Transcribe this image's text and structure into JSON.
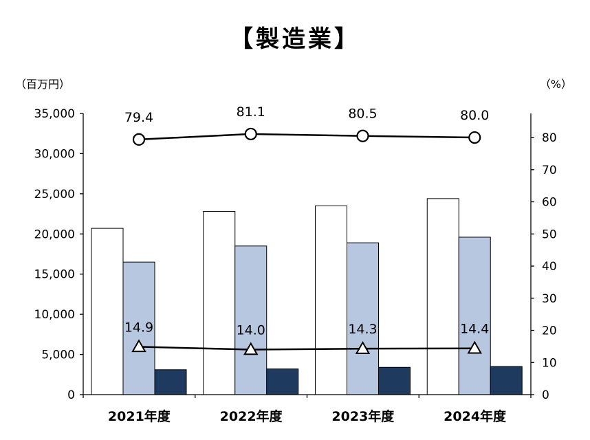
{
  "title": "【製造業】",
  "left_unit": "（百万円）",
  "right_unit": "（%）",
  "chart_data": {
    "type": "bar",
    "categories": [
      "2021年度",
      "2022年度",
      "2023年度",
      "2024年度"
    ],
    "series": [
      {
        "values": [
          20700,
          22800,
          23500,
          24400
        ],
        "color": "#ffffff",
        "stroke": "#000000"
      },
      {
        "values": [
          16500,
          18500,
          18900,
          19600
        ],
        "color": "#b8c7e0",
        "stroke": "#000000"
      },
      {
        "values": [
          3100,
          3200,
          3400,
          3500
        ],
        "color": "#1f3a5f",
        "stroke": "#000000"
      }
    ],
    "line_series": [
      {
        "marker": "circle",
        "axis": "right",
        "values": [
          79.4,
          81.1,
          80.5,
          80.0
        ],
        "labels": [
          "79.4",
          "81.1",
          "80.5",
          "80.0"
        ]
      },
      {
        "marker": "triangle",
        "axis": "right",
        "values": [
          14.9,
          14.0,
          14.3,
          14.4
        ],
        "labels": [
          "14.9",
          "14.0",
          "14.3",
          "14.4"
        ]
      }
    ],
    "y_left": {
      "lim": [
        0,
        35000
      ],
      "ticks": [
        "0",
        "5,000",
        "10,000",
        "15,000",
        "20,000",
        "25,000",
        "30,000",
        "35,000"
      ]
    },
    "y_right": {
      "lim": [
        0,
        87.5
      ],
      "ticks": [
        "0",
        "10",
        "20",
        "30",
        "40",
        "50",
        "60",
        "70",
        "80"
      ]
    },
    "grid": false,
    "legend": "none"
  }
}
